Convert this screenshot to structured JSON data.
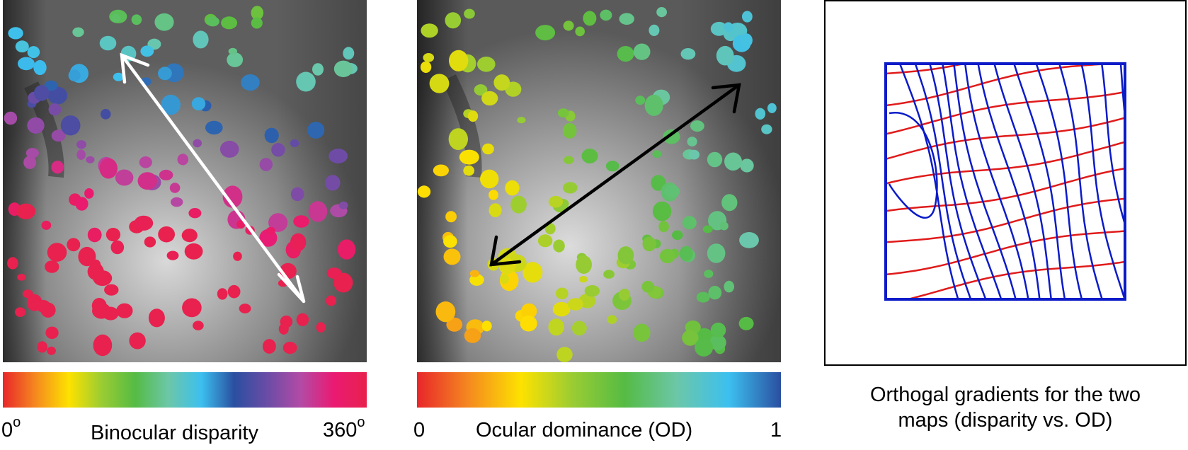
{
  "panel_disparity": {
    "colorbar": {
      "stops": [
        "#e8262a",
        "#f58a1f",
        "#fde200",
        "#99cc33",
        "#55bb44",
        "#6cc7a8",
        "#3cc0ef",
        "#2a4fa0",
        "#6a4ca6",
        "#b24ba6",
        "#ea1a72",
        "#e8214e"
      ],
      "min_label": "0",
      "min_unit": "o",
      "max_label": "360",
      "max_unit": "o",
      "title": "Binocular disparity"
    },
    "arrow_color": "#ffffff"
  },
  "panel_od": {
    "colorbar": {
      "stops": [
        "#e8262a",
        "#f58a1f",
        "#fde200",
        "#99cc33",
        "#55bb44",
        "#6cc7a8",
        "#3cc0ef",
        "#2a4fa0"
      ],
      "min_label": "0",
      "max_label": "1",
      "title": "Ocular dominance (OD)"
    },
    "arrow_color": "#000000"
  },
  "panel_gradients": {
    "caption_line1": "Orthogal gradients for the two",
    "caption_line2": "maps (disparity vs. OD)",
    "contour_colors": {
      "disparity": "#0b1bc8",
      "od": "#e01b1b"
    }
  }
}
